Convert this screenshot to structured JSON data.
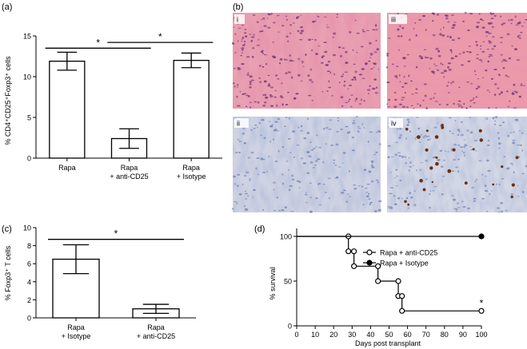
{
  "panels": {
    "a": {
      "label": "(a)",
      "chart_data": {
        "type": "bar",
        "ylabel": "% CD4⁺CD25⁺Foxp3⁺ cells",
        "xlabel": "",
        "ylim": [
          0,
          15
        ],
        "yticks": [
          0,
          5,
          10,
          15
        ],
        "categories": [
          [
            "Rapa"
          ],
          [
            "Rapa",
            "+ anti-CD25"
          ],
          [
            "Rapa",
            "+ Isotype"
          ]
        ],
        "values": [
          11.9,
          2.4,
          12.0
        ],
        "errors": [
          1.1,
          1.2,
          0.9
        ],
        "significance": [
          {
            "from": 0,
            "to": 1,
            "label": "*",
            "level": 13.5
          },
          {
            "from": 1,
            "to": 2,
            "label": "*",
            "level": 14.2
          }
        ]
      }
    },
    "b": {
      "label": "(b)",
      "images": [
        {
          "label": "i",
          "stain": "H&E",
          "colors": [
            "#c9556f",
            "#e9a0b2",
            "#7a3a78"
          ]
        },
        {
          "label": "iii",
          "stain": "H&E",
          "colors": [
            "#c9556f",
            "#ec9aaa",
            "#7a3a78"
          ]
        },
        {
          "label": "ii",
          "stain": "Foxp3 IHC",
          "colors": [
            "#cfd2e2",
            "#7688b8",
            "#e8e4e0"
          ]
        },
        {
          "label": "iv",
          "stain": "Foxp3 IHC",
          "colors": [
            "#d3d6e4",
            "#7c8cbc",
            "#6a3010"
          ]
        }
      ]
    },
    "c": {
      "label": "(c)",
      "chart_data": {
        "type": "bar",
        "ylabel": "% Foxp3⁺ T cells",
        "xlabel": "",
        "ylim": [
          0,
          10
        ],
        "yticks": [
          0,
          2,
          4,
          6,
          8,
          10
        ],
        "categories": [
          [
            "Rapa",
            "+ Isotype"
          ],
          [
            "Rapa",
            "+ anti-CD25"
          ]
        ],
        "values": [
          6.5,
          1.0
        ],
        "errors": [
          1.6,
          0.5
        ],
        "significance": [
          {
            "from": 0,
            "to": 1,
            "label": "*",
            "level": 8.7
          }
        ]
      }
    },
    "d": {
      "label": "(d)",
      "chart_data": {
        "type": "line",
        "xlabel": "Days post transplant",
        "ylabel": "% survival",
        "xlim": [
          0,
          100
        ],
        "ylim": [
          0,
          100
        ],
        "xticks": [
          0,
          10,
          20,
          30,
          40,
          50,
          60,
          70,
          80,
          90,
          100
        ],
        "yticks": [
          0,
          50,
          100
        ],
        "legend": "top-right",
        "series": [
          {
            "name": "Rapa + anti-CD25",
            "marker": "open-circle",
            "steps": [
              [
                0,
                100
              ],
              [
                28,
                83.3
              ],
              [
                31,
                66.7
              ],
              [
                44,
                50
              ],
              [
                55,
                33.3
              ],
              [
                57,
                16.7
              ],
              [
                100,
                16.7
              ]
            ]
          },
          {
            "name": "Rapa + Isotype",
            "marker": "filled-circle",
            "steps": [
              [
                0,
                100
              ],
              [
                100,
                100
              ]
            ]
          }
        ],
        "annotation": {
          "x": 100,
          "y": 16.7,
          "label": "*"
        }
      }
    }
  }
}
